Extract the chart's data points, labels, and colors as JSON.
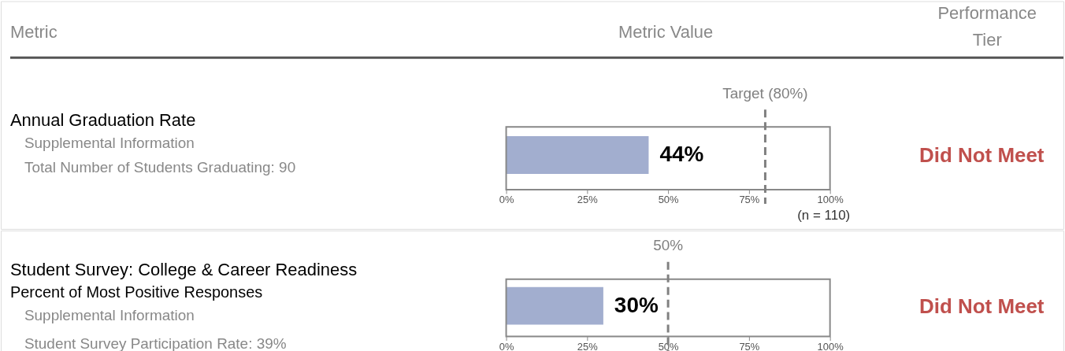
{
  "chart_data": [
    {
      "type": "bar",
      "orientation": "horizontal",
      "categories": [
        null
      ],
      "values": [
        44
      ],
      "colors": [
        "#a2aecf"
      ],
      "value_labels": [
        "44%"
      ],
      "xlim": [
        0,
        100
      ],
      "xticks": [
        {
          "value": 0,
          "label": "0%"
        },
        {
          "value": 25,
          "label": "25%"
        },
        {
          "value": 50,
          "label": "50%"
        },
        {
          "value": 75,
          "label": "75%"
        },
        {
          "value": 100,
          "label": "100%"
        }
      ],
      "ref_lines": [
        {
          "axis": "x",
          "value": 80,
          "label": "Target (80%)",
          "color": "#808080",
          "line_style": "dashed"
        }
      ],
      "annotations": [
        "Metric",
        "Metric Value",
        "Performance Tier",
        "Annual Graduation Rate",
        "Supplemental Information",
        "Total Number of Students Graduating:  90",
        "(n = 110)",
        "Did Not Meet"
      ]
    },
    {
      "type": "bar",
      "orientation": "horizontal",
      "categories": [
        null
      ],
      "values": [
        30
      ],
      "colors": [
        "#a2aecf"
      ],
      "value_labels": [
        "30%"
      ],
      "xlim": [
        0,
        100
      ],
      "xticks": [
        {
          "value": 0,
          "label": "0%"
        },
        {
          "value": 25,
          "label": "25%"
        },
        {
          "value": 50,
          "label": "50%"
        },
        {
          "value": 75,
          "label": "75%"
        },
        {
          "value": 100,
          "label": "100%"
        }
      ],
      "ref_lines": [
        {
          "axis": "x",
          "value": 50,
          "label": "50%",
          "color": "#808080",
          "line_style": "dashed"
        }
      ],
      "annotations": [
        "Student Survey: College & Career Readiness",
        "Percent of Most Positive Responses",
        "Supplemental Information",
        "Student Survey Participation Rate:  39%",
        "Did Not Meet"
      ]
    }
  ]
}
